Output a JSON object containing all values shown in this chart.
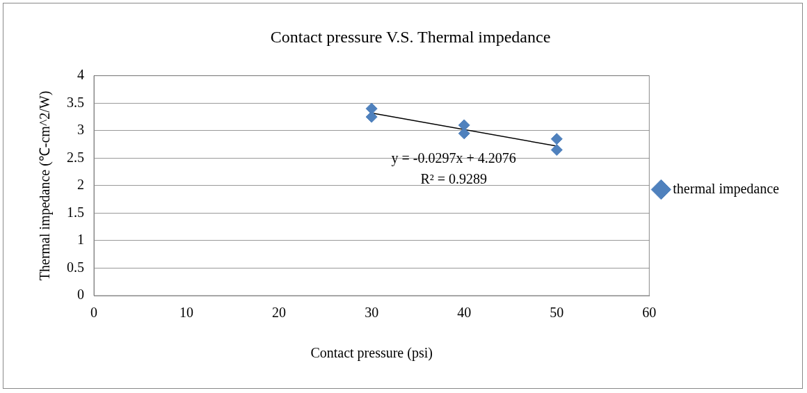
{
  "chart_data": {
    "type": "scatter",
    "title": "Contact pressure V.S. Thermal impedance",
    "xlabel": "Contact pressure (psi)",
    "ylabel": "Thermal impedance (℃-cm^2/W)",
    "series": [
      {
        "name": "thermal impedance",
        "color": "#4f81bd",
        "x": [
          30,
          30,
          40,
          40,
          50,
          50
        ],
        "values": [
          3.4,
          3.25,
          3.1,
          2.95,
          2.85,
          2.65
        ]
      },
      {
        "type": "line",
        "color": "#000000",
        "x": [
          30,
          50
        ],
        "values": [
          3.32,
          2.72
        ],
        "marker": "none"
      }
    ],
    "annotations": [
      "y = -0.0297x + 4.2076",
      "R² = 0.9289"
    ],
    "xlim": [
      0,
      60
    ],
    "xticks": [
      0,
      10,
      20,
      30,
      40,
      50,
      60
    ],
    "ylim": [
      0,
      4
    ],
    "yticks": [
      0,
      0.5,
      1,
      1.5,
      2,
      2.5,
      3,
      3.5,
      4
    ],
    "grid": "y",
    "legend": "right",
    "marker": "diamond"
  }
}
